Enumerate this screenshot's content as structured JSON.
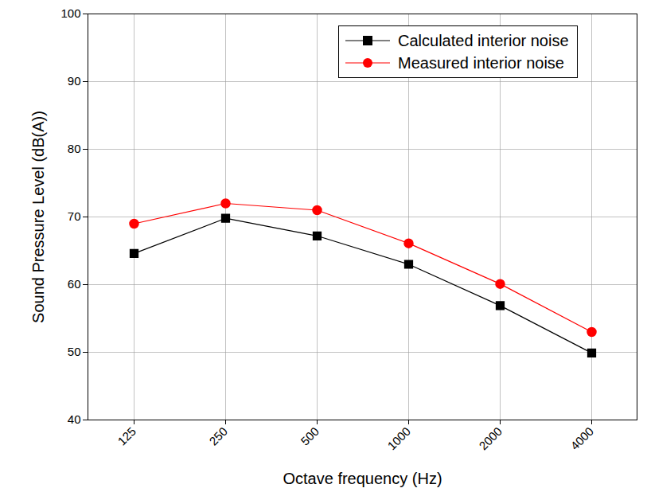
{
  "chart_data": {
    "type": "line",
    "x_label": "Octave frequency (Hz)",
    "y_label": "Sound Pressure Level (dB(A))",
    "categories": [
      "125",
      "250",
      "500",
      "1000",
      "2000",
      "4000"
    ],
    "series": [
      {
        "name": "Calculated interior noise",
        "color": "#000000",
        "marker": "square",
        "values": [
          64.6,
          69.8,
          67.2,
          63.0,
          56.9,
          49.9
        ]
      },
      {
        "name": "Measured interior noise",
        "color": "#ff0000",
        "marker": "circle",
        "values": [
          69.0,
          72.0,
          71.0,
          66.1,
          60.1,
          53.0
        ]
      }
    ],
    "ylim": [
      40,
      100
    ],
    "yticks": [
      40,
      50,
      60,
      70,
      80,
      90,
      100
    ],
    "grid": true,
    "legend": "top-right"
  }
}
